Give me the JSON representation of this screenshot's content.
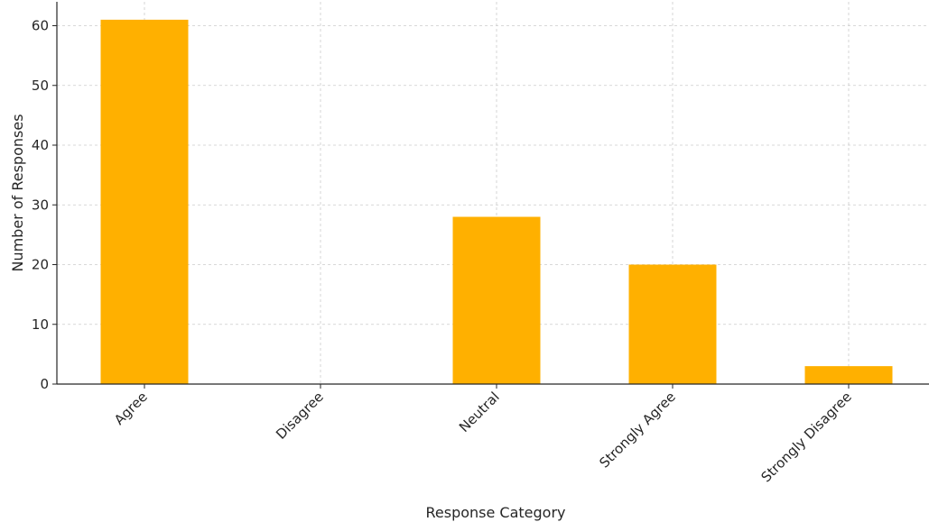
{
  "chart_data": {
    "type": "bar",
    "title": "",
    "xlabel": "Response Category",
    "ylabel": "Number of Responses",
    "categories": [
      "Agree",
      "Disagree",
      "Neutral",
      "Strongly Agree",
      "Strongly Disagree"
    ],
    "values": [
      61,
      0,
      28,
      20,
      3
    ],
    "ylim": [
      0,
      64
    ],
    "yticks": [
      0,
      10,
      20,
      30,
      40,
      50,
      60
    ],
    "grid": true,
    "bar_color": "#FFB000"
  }
}
